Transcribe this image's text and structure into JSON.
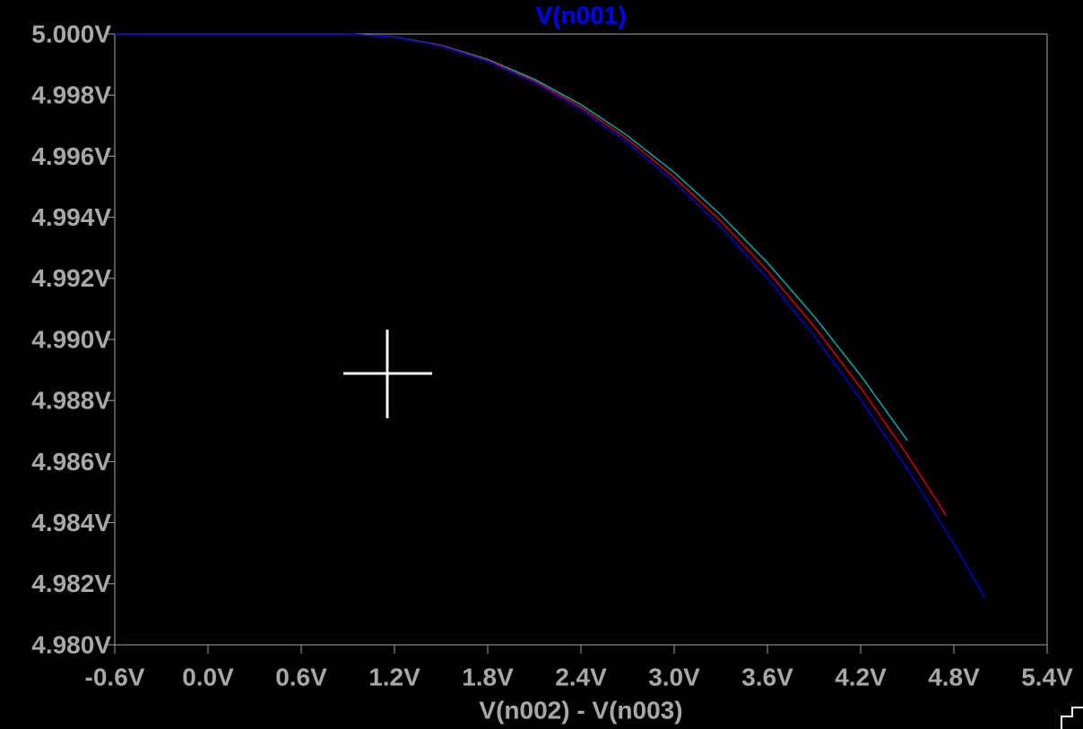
{
  "chart_data": {
    "type": "line",
    "title": "V(n001)",
    "x_label": "V(n002) - V(n003)",
    "xlim": [
      -0.6,
      5.4
    ],
    "xticks": [
      {
        "value": -0.6,
        "label": "-0.6V"
      },
      {
        "value": 0,
        "label": "0.0V"
      },
      {
        "value": 0.6,
        "label": "0.6V"
      },
      {
        "value": 1.2,
        "label": "1.2V"
      },
      {
        "value": 1.8,
        "label": "1.8V"
      },
      {
        "value": 2.4,
        "label": "2.4V"
      },
      {
        "value": 3.0,
        "label": "3.0V"
      },
      {
        "value": 3.6,
        "label": "3.6V"
      },
      {
        "value": 4.2,
        "label": "4.2V"
      },
      {
        "value": 4.8,
        "label": "4.8V"
      },
      {
        "value": 5.4,
        "label": "5.4V"
      }
    ],
    "ylim": [
      4.98,
      5.0
    ],
    "yticks": [
      {
        "value": 4.98,
        "label": "4.980V"
      },
      {
        "value": 4.982,
        "label": "4.982V"
      },
      {
        "value": 4.984,
        "label": "4.984V"
      },
      {
        "value": 4.986,
        "label": "4.986V"
      },
      {
        "value": 4.988,
        "label": "4.988V"
      },
      {
        "value": 4.99,
        "label": "4.990V"
      },
      {
        "value": 4.992,
        "label": "4.992V"
      },
      {
        "value": 4.994,
        "label": "4.994V"
      },
      {
        "value": 4.996,
        "label": "4.996V"
      },
      {
        "value": 4.998,
        "label": "4.998V"
      },
      {
        "value": 5.0,
        "label": "5.000V"
      }
    ],
    "series": [
      {
        "color": "#00a8a8",
        "x": [
          -0.6,
          0,
          0.6,
          0.9,
          1.2,
          1.5,
          1.8,
          2.1,
          2.4,
          2.7,
          3.0,
          3.3,
          3.6,
          3.9,
          4.2,
          4.5
        ],
        "values": [
          5,
          5,
          5,
          5,
          4.99991,
          4.99963,
          4.99917,
          4.99852,
          4.99769,
          4.99667,
          4.99547,
          4.99408,
          4.99251,
          4.99076,
          4.98882,
          4.98669
        ]
      },
      {
        "color": "#d00000",
        "x": [
          -0.6,
          0,
          0.6,
          0.9,
          1.2,
          1.5,
          1.8,
          2.1,
          2.4,
          2.7,
          3.0,
          3.3,
          3.6,
          3.9,
          4.2,
          4.5,
          4.75
        ],
        "values": [
          5,
          5,
          5,
          5,
          4.9999,
          4.99962,
          4.99914,
          4.99847,
          4.99761,
          4.99656,
          4.99531,
          4.99388,
          4.99225,
          4.99043,
          4.98842,
          4.98622,
          4.98424
        ]
      },
      {
        "color": "#0000d0",
        "x": [
          -0.6,
          0,
          0.6,
          0.9,
          1.2,
          1.5,
          1.8,
          2.1,
          2.4,
          2.7,
          3.0,
          3.3,
          3.6,
          3.9,
          4.2,
          4.5,
          4.8,
          5.0
        ],
        "values": [
          5,
          5,
          5,
          5,
          4.9999,
          4.9996,
          4.99911,
          4.99842,
          4.99753,
          4.99644,
          4.99516,
          4.99368,
          4.992,
          4.99012,
          4.98804,
          4.98577,
          4.9833,
          4.98154
        ]
      }
    ]
  }
}
